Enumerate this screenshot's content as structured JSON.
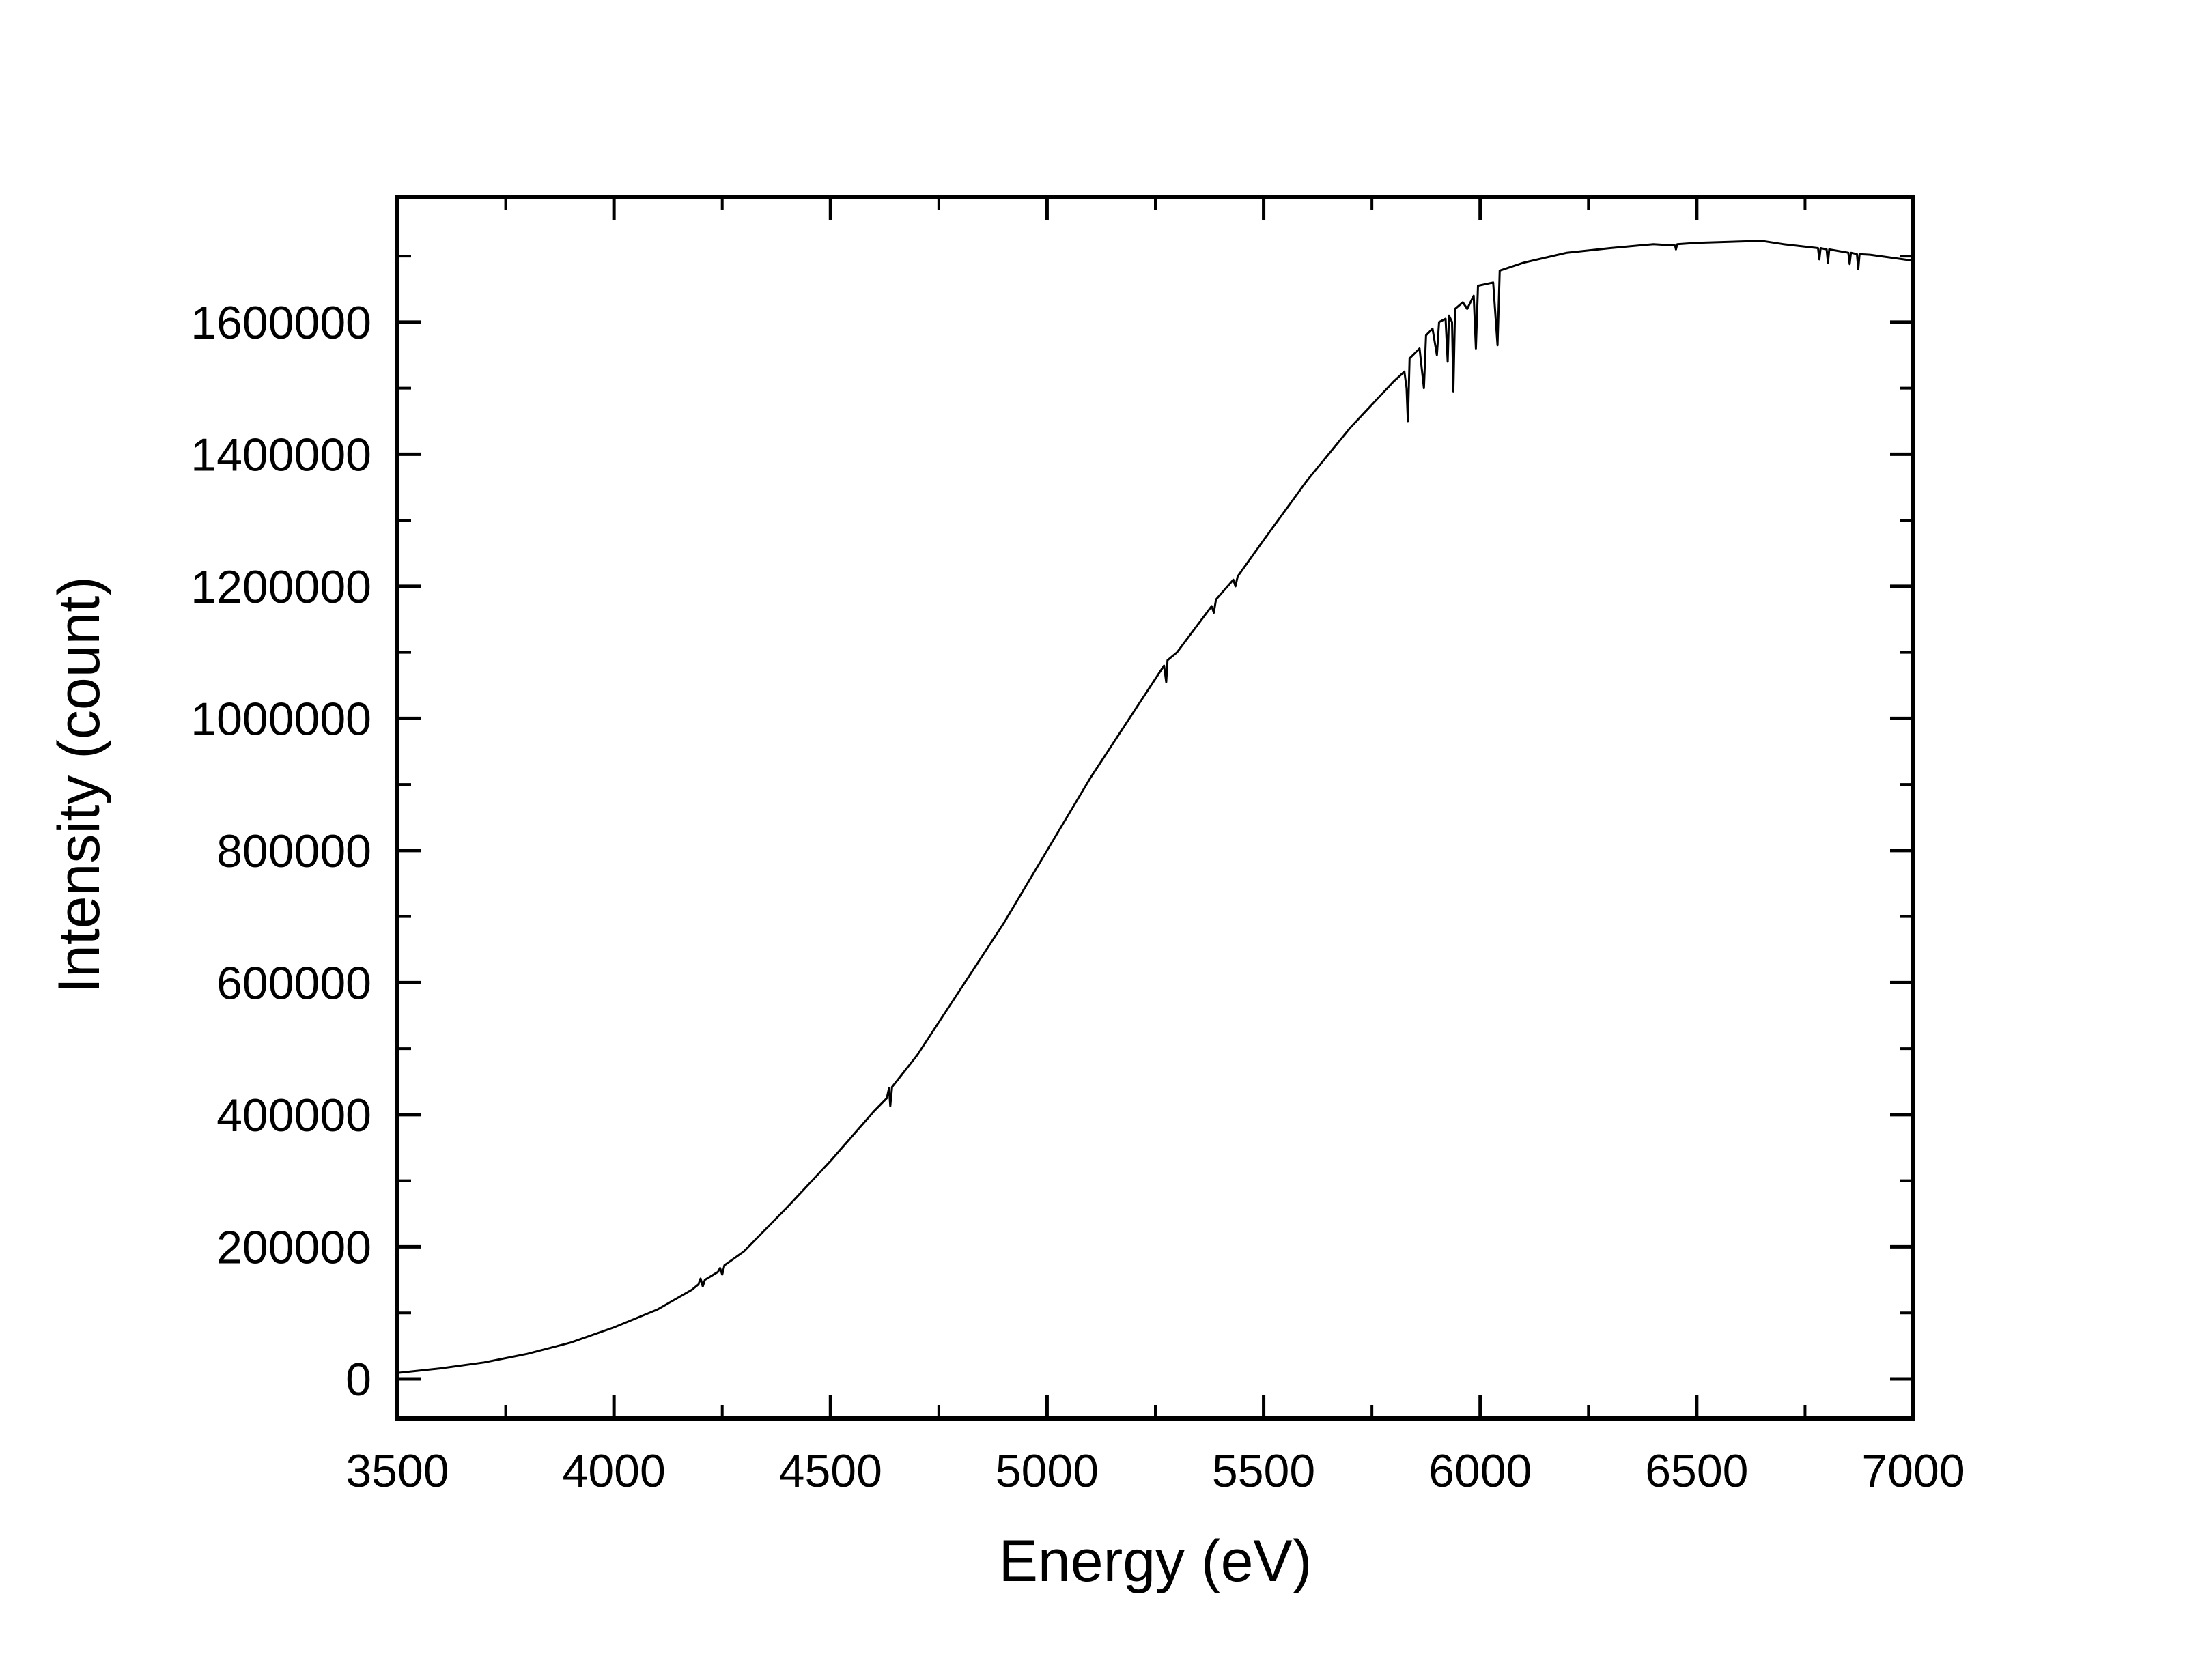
{
  "chart_data": {
    "type": "line",
    "title": "",
    "xlabel": "Energy (eV)",
    "ylabel": "Intensity (count)",
    "xlim": [
      3500,
      7000
    ],
    "ylim": [
      -60000,
      1790000
    ],
    "x_ticks": [
      3500,
      4000,
      4500,
      5000,
      5500,
      6000,
      6500,
      7000
    ],
    "x_tick_labels": [
      "3500",
      "4000",
      "4500",
      "5000",
      "5500",
      "6000",
      "6500",
      "7000"
    ],
    "x_minor_step": 250,
    "y_ticks": [
      0,
      200000,
      400000,
      600000,
      800000,
      1000000,
      1200000,
      1400000,
      1600000
    ],
    "y_tick_labels": [
      "0",
      "200000",
      "400000",
      "600000",
      "800000",
      "1000000",
      "1200000",
      "1400000",
      "1600000"
    ],
    "y_minor_step": 100000,
    "grid": false,
    "legend": "none",
    "line_color": "#000000",
    "series": [
      {
        "points": [
          [
            3500,
            9000
          ],
          [
            3600,
            16000
          ],
          [
            3700,
            25000
          ],
          [
            3800,
            38000
          ],
          [
            3900,
            55000
          ],
          [
            4000,
            78000
          ],
          [
            4100,
            105000
          ],
          [
            4180,
            135000
          ],
          [
            4195,
            143000
          ],
          [
            4200,
            152000
          ],
          [
            4205,
            140000
          ],
          [
            4210,
            150000
          ],
          [
            4240,
            162000
          ],
          [
            4245,
            168000
          ],
          [
            4250,
            158000
          ],
          [
            4255,
            172000
          ],
          [
            4300,
            193000
          ],
          [
            4400,
            260000
          ],
          [
            4500,
            330000
          ],
          [
            4600,
            405000
          ],
          [
            4630,
            425000
          ],
          [
            4635,
            440000
          ],
          [
            4638,
            413000
          ],
          [
            4642,
            442000
          ],
          [
            4700,
            490000
          ],
          [
            4800,
            590000
          ],
          [
            4900,
            690000
          ],
          [
            5000,
            800000
          ],
          [
            5100,
            910000
          ],
          [
            5200,
            1010000
          ],
          [
            5270,
            1080000
          ],
          [
            5275,
            1055000
          ],
          [
            5278,
            1088000
          ],
          [
            5300,
            1100000
          ],
          [
            5380,
            1170000
          ],
          [
            5385,
            1160000
          ],
          [
            5390,
            1180000
          ],
          [
            5430,
            1210000
          ],
          [
            5435,
            1200000
          ],
          [
            5440,
            1215000
          ],
          [
            5500,
            1270000
          ],
          [
            5600,
            1360000
          ],
          [
            5700,
            1440000
          ],
          [
            5800,
            1510000
          ],
          [
            5825,
            1525000
          ],
          [
            5830,
            1500000
          ],
          [
            5833,
            1450000
          ],
          [
            5837,
            1545000
          ],
          [
            5860,
            1560000
          ],
          [
            5870,
            1500000
          ],
          [
            5875,
            1580000
          ],
          [
            5890,
            1590000
          ],
          [
            5900,
            1550000
          ],
          [
            5905,
            1600000
          ],
          [
            5920,
            1605000
          ],
          [
            5925,
            1540000
          ],
          [
            5928,
            1610000
          ],
          [
            5935,
            1600000
          ],
          [
            5938,
            1495000
          ],
          [
            5942,
            1620000
          ],
          [
            5960,
            1630000
          ],
          [
            5970,
            1620000
          ],
          [
            5985,
            1640000
          ],
          [
            5990,
            1560000
          ],
          [
            5995,
            1655000
          ],
          [
            6030,
            1660000
          ],
          [
            6040,
            1565000
          ],
          [
            6045,
            1678000
          ],
          [
            6100,
            1690000
          ],
          [
            6200,
            1705000
          ],
          [
            6300,
            1712000
          ],
          [
            6400,
            1718000
          ],
          [
            6450,
            1716000
          ],
          [
            6452,
            1710000
          ],
          [
            6455,
            1718000
          ],
          [
            6500,
            1720000
          ],
          [
            6600,
            1722000
          ],
          [
            6650,
            1723000
          ],
          [
            6700,
            1718000
          ],
          [
            6780,
            1712000
          ],
          [
            6783,
            1695000
          ],
          [
            6786,
            1712000
          ],
          [
            6800,
            1710000
          ],
          [
            6803,
            1690000
          ],
          [
            6806,
            1710000
          ],
          [
            6850,
            1705000
          ],
          [
            6853,
            1688000
          ],
          [
            6856,
            1705000
          ],
          [
            6870,
            1703000
          ],
          [
            6873,
            1680000
          ],
          [
            6876,
            1703000
          ],
          [
            6900,
            1702000
          ],
          [
            7000,
            1693000
          ]
        ]
      }
    ]
  }
}
